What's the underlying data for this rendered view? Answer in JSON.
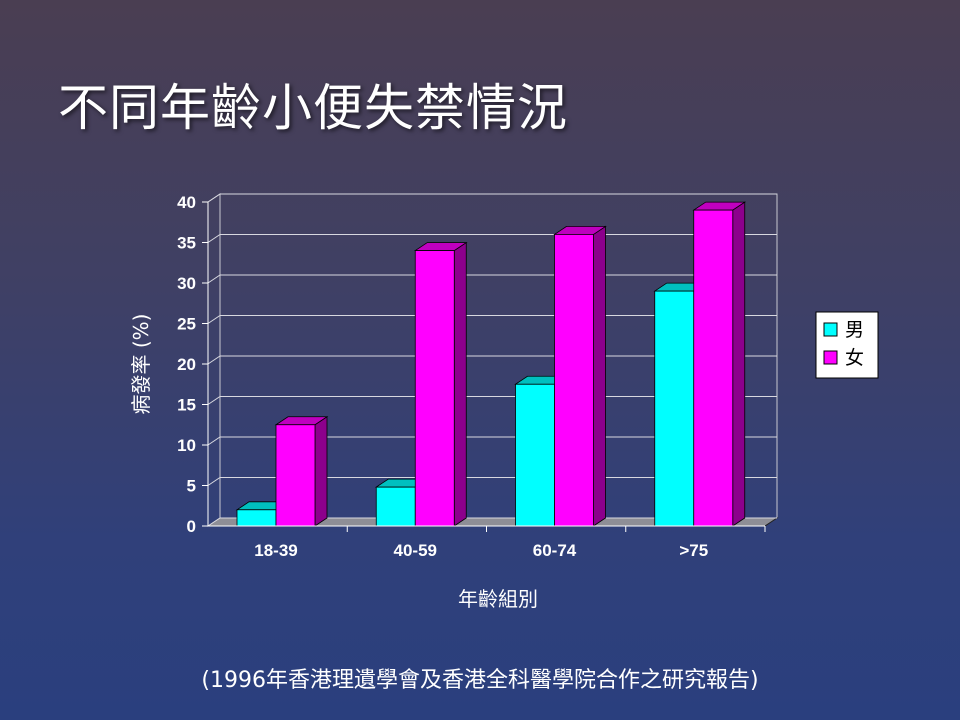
{
  "slide": {
    "title": "不同年齡小便失禁情況",
    "footnote": "(1996年香港理遺學會及香港全科醫學院合作之研究報告)"
  },
  "chart_data": {
    "type": "bar",
    "categories": [
      "18-39",
      "40-59",
      "60-74",
      ">75"
    ],
    "series": [
      {
        "name": "男",
        "values": [
          2,
          4.8,
          17.5,
          29
        ],
        "color": "#00ffff"
      },
      {
        "name": "女",
        "values": [
          12.5,
          34,
          36,
          39
        ],
        "color": "#ff00ff"
      }
    ],
    "xlabel": "年齡組別",
    "ylabel": "病發率 (%)",
    "ylim": [
      0,
      40
    ],
    "yticks": [
      0,
      5,
      10,
      15,
      20,
      25,
      30,
      35,
      40
    ],
    "grid": true,
    "legend": "right",
    "style": "3d"
  }
}
